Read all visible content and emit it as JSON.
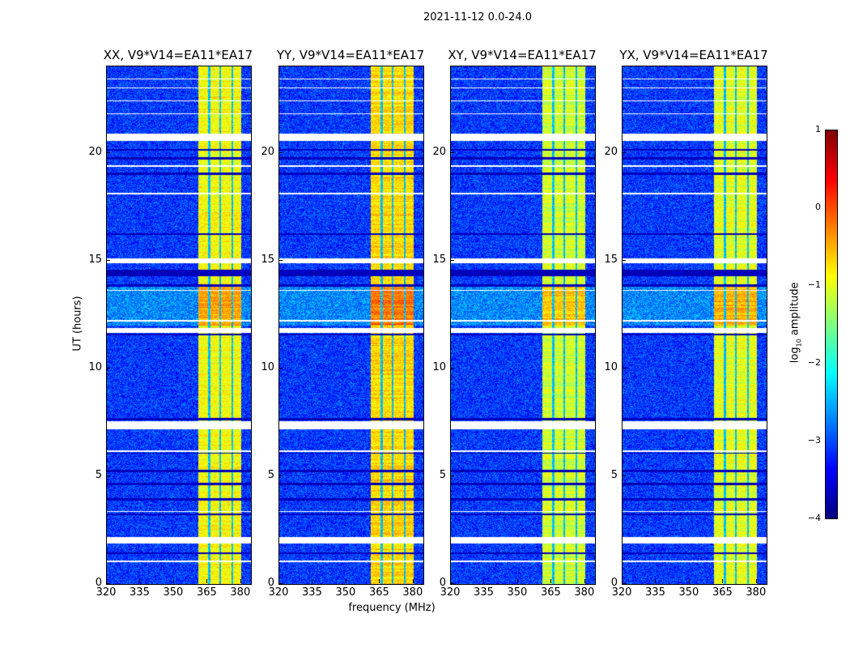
{
  "suptitle": "2021-11-12 0.0-24.0",
  "chart_data": {
    "type": "heatmap",
    "title": "2021-11-12 0.0-24.0",
    "xlabel": "frequency (MHz)",
    "ylabel": "UT (hours)",
    "xlim": [
      320,
      384.4
    ],
    "ylim": [
      0,
      24
    ],
    "xticks": [
      "320",
      "335",
      "350",
      "365",
      "380"
    ],
    "xtick_values": [
      320,
      335,
      350,
      365,
      380
    ],
    "yticks": [
      "0",
      "5",
      "10",
      "15",
      "20"
    ],
    "ytick_values": [
      0,
      5,
      10,
      15,
      20
    ],
    "panels": [
      {
        "title": "XX, V9*V14=EA11*EA17",
        "band_level": -0.9
      },
      {
        "title": "YY, V9*V14=EA11*EA17",
        "band_level": -0.7
      },
      {
        "title": "XY, V9*V14=EA11*EA17",
        "band_level": -1.1
      },
      {
        "title": "YX, V9*V14=EA11*EA17",
        "band_level": -1.0
      }
    ],
    "background_level": -3.1,
    "rfi_band_mhz": [
      360.7,
      379.8
    ],
    "rfi_band_gaps_mhz": [
      365.6,
      370.4,
      375.9
    ],
    "flagged_intervals_hours": [
      [
        1.05,
        1.12
      ],
      [
        1.9,
        2.2
      ],
      [
        3.35,
        3.4
      ],
      [
        6.15,
        6.2
      ],
      [
        7.2,
        7.55
      ],
      [
        11.65,
        11.9
      ],
      [
        12.2,
        12.25
      ],
      [
        13.6,
        13.65
      ],
      [
        14.9,
        15.1
      ],
      [
        18.1,
        18.15
      ],
      [
        19.35,
        19.45
      ],
      [
        20.55,
        20.9
      ],
      [
        21.8,
        21.85
      ],
      [
        22.4,
        22.45
      ],
      [
        23.0,
        23.05
      ],
      [
        23.4,
        23.45
      ]
    ],
    "dropout_intervals_hours": [
      [
        1.4,
        1.5
      ],
      [
        3.2,
        3.3
      ],
      [
        3.9,
        4.0
      ],
      [
        4.6,
        4.7
      ],
      [
        5.2,
        5.3
      ],
      [
        6.05,
        6.12
      ],
      [
        7.6,
        7.7
      ],
      [
        11.55,
        11.62
      ],
      [
        13.8,
        13.9
      ],
      [
        14.3,
        14.6
      ],
      [
        16.2,
        16.3
      ],
      [
        19.0,
        19.1
      ],
      [
        19.7,
        19.8
      ],
      [
        20.1,
        20.2
      ]
    ],
    "colorbar": {
      "label": "log10 amplitude",
      "min": -4,
      "max": 1,
      "ticks": [
        "1",
        "0",
        "−1",
        "−2",
        "−3",
        "−4"
      ],
      "tick_values": [
        1,
        0,
        -1,
        -2,
        -3,
        -4
      ],
      "colormap": "jet"
    }
  }
}
